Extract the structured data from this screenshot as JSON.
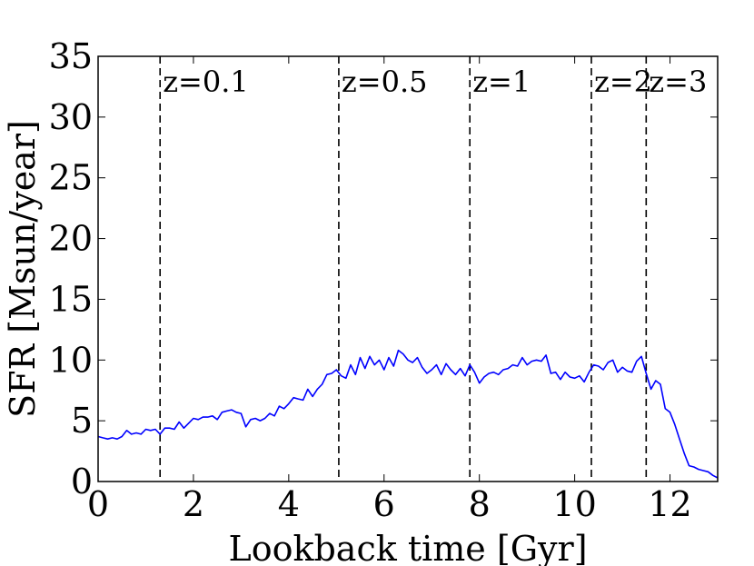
{
  "chart_data": {
    "type": "line",
    "title": "",
    "xlabel": "Lookback time [Gyr]",
    "ylabel": "SFR [Msun/year]",
    "xlim": [
      0,
      13
    ],
    "ylim": [
      0,
      35
    ],
    "xticks": [
      0,
      2,
      4,
      6,
      8,
      10,
      12
    ],
    "yticks": [
      0,
      5,
      10,
      15,
      20,
      25,
      30,
      35
    ],
    "grid": false,
    "line_color": "#0000ff",
    "series": [
      {
        "x": [
          0.0,
          0.1,
          0.2,
          0.3,
          0.4,
          0.5,
          0.6,
          0.7,
          0.8,
          0.9,
          1.0,
          1.1,
          1.2,
          1.3,
          1.4,
          1.5,
          1.6,
          1.7,
          1.8,
          1.9,
          2.0,
          2.1,
          2.2,
          2.3,
          2.4,
          2.5,
          2.6,
          2.7,
          2.8,
          2.9,
          3.0,
          3.1,
          3.2,
          3.3,
          3.4,
          3.5,
          3.6,
          3.7,
          3.8,
          3.9,
          4.0,
          4.1,
          4.2,
          4.3,
          4.4,
          4.5,
          4.6,
          4.7,
          4.8,
          4.9,
          5.0,
          5.1,
          5.2,
          5.3,
          5.4,
          5.5,
          5.6,
          5.7,
          5.8,
          5.9,
          6.0,
          6.1,
          6.2,
          6.3,
          6.4,
          6.5,
          6.6,
          6.7,
          6.8,
          6.9,
          7.0,
          7.1,
          7.2,
          7.3,
          7.4,
          7.5,
          7.6,
          7.7,
          7.8,
          7.9,
          8.0,
          8.1,
          8.2,
          8.3,
          8.4,
          8.5,
          8.6,
          8.7,
          8.8,
          8.9,
          9.0,
          9.1,
          9.2,
          9.3,
          9.4,
          9.5,
          9.6,
          9.7,
          9.8,
          9.9,
          10.0,
          10.1,
          10.2,
          10.3,
          10.4,
          10.5,
          10.6,
          10.7,
          10.8,
          10.9,
          11.0,
          11.1,
          11.2,
          11.3,
          11.4,
          11.5,
          11.6,
          11.7,
          11.8,
          11.9,
          12.0,
          12.1,
          12.2,
          12.3,
          12.4,
          12.5,
          12.6,
          12.7,
          12.8,
          12.9,
          13.0
        ],
        "y": [
          3.7,
          3.6,
          3.5,
          3.6,
          3.5,
          3.7,
          4.2,
          3.9,
          4.0,
          3.9,
          4.3,
          4.2,
          4.3,
          3.9,
          4.4,
          4.4,
          4.3,
          4.9,
          4.4,
          4.8,
          5.2,
          5.1,
          5.3,
          5.3,
          5.4,
          5.1,
          5.7,
          5.8,
          5.9,
          5.7,
          5.6,
          4.5,
          5.1,
          5.2,
          5.0,
          5.2,
          5.6,
          5.4,
          6.2,
          6.0,
          6.4,
          6.9,
          6.8,
          6.7,
          7.6,
          7.0,
          7.6,
          8.0,
          8.8,
          8.9,
          9.2,
          8.7,
          8.5,
          9.6,
          8.8,
          10.2,
          9.3,
          10.3,
          9.6,
          10.0,
          9.2,
          10.2,
          9.5,
          10.8,
          10.5,
          10.0,
          9.8,
          10.2,
          9.4,
          8.9,
          9.2,
          9.6,
          8.8,
          9.7,
          9.2,
          8.8,
          9.3,
          8.7,
          9.6,
          9.0,
          8.1,
          8.6,
          8.9,
          9.0,
          8.8,
          9.2,
          9.3,
          9.6,
          9.5,
          10.2,
          9.6,
          9.9,
          10.0,
          9.9,
          10.4,
          8.9,
          9.0,
          8.4,
          9.0,
          8.6,
          8.5,
          8.7,
          8.2,
          9.0,
          9.6,
          9.5,
          9.2,
          9.8,
          10.0,
          9.0,
          9.4,
          9.1,
          9.0,
          9.9,
          10.3,
          8.9,
          7.6,
          8.3,
          8.0,
          6.0,
          5.7,
          4.7,
          3.5,
          2.3,
          1.3,
          1.2,
          1.0,
          0.9,
          0.8,
          0.5,
          0.3
        ]
      }
    ],
    "vlines": [
      {
        "x": 1.3,
        "label": "z=0.1"
      },
      {
        "x": 5.05,
        "label": "z=0.5"
      },
      {
        "x": 7.8,
        "label": "z=1"
      },
      {
        "x": 10.35,
        "label": "z=2"
      },
      {
        "x": 11.5,
        "label": "z=3"
      }
    ]
  }
}
